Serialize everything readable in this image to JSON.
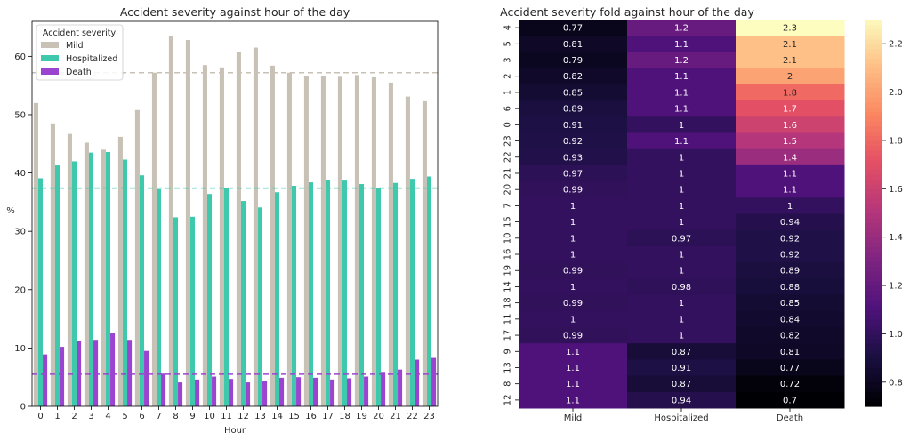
{
  "chart_data": [
    {
      "type": "bar",
      "title": "Accident severity against hour of the day",
      "xlabel": "Hour",
      "ylabel": "%",
      "ylim": [
        0,
        66
      ],
      "yticks": [
        0,
        10,
        20,
        30,
        40,
        50,
        60
      ],
      "legend_title": "Accident severity",
      "legend_position": "upper-left",
      "categories": [
        "0",
        "1",
        "2",
        "3",
        "4",
        "5",
        "6",
        "7",
        "8",
        "9",
        "10",
        "11",
        "12",
        "13",
        "14",
        "15",
        "16",
        "17",
        "18",
        "19",
        "20",
        "21",
        "22",
        "23"
      ],
      "series": [
        {
          "name": "Mild",
          "color": "#c8c2b6",
          "values": [
            52.0,
            48.5,
            46.7,
            45.2,
            44.0,
            46.2,
            50.8,
            57.2,
            63.5,
            62.8,
            58.5,
            58.1,
            60.8,
            61.5,
            58.4,
            57.2,
            56.7,
            56.7,
            56.5,
            56.8,
            56.4,
            55.5,
            53.1,
            52.3
          ]
        },
        {
          "name": "Hospitalized",
          "color": "#3ec9ad",
          "values": [
            39.1,
            41.3,
            42.0,
            43.5,
            43.6,
            42.3,
            39.6,
            37.2,
            32.4,
            32.5,
            36.4,
            37.4,
            35.2,
            34.1,
            36.7,
            37.8,
            38.4,
            38.8,
            38.7,
            38.1,
            37.4,
            38.3,
            39.0,
            39.4
          ]
        },
        {
          "name": "Death",
          "color": "#9b44d0",
          "values": [
            8.9,
            10.2,
            11.2,
            11.4,
            12.5,
            11.4,
            9.5,
            5.6,
            4.1,
            4.6,
            5.1,
            4.7,
            4.1,
            4.4,
            4.9,
            5.0,
            4.9,
            4.6,
            4.8,
            5.1,
            5.9,
            6.3,
            8.0,
            8.3
          ]
        }
      ],
      "reference_lines": [
        {
          "series": "Mild",
          "value": 57.2,
          "style": "dashed"
        },
        {
          "series": "Hospitalized",
          "value": 37.4,
          "style": "dashed"
        },
        {
          "series": "Death",
          "value": 5.5,
          "style": "dashed"
        }
      ]
    },
    {
      "type": "heatmap",
      "title": "Accident severity fold against hour of the day",
      "colormap": "magma",
      "vmin": 0.7,
      "vmax": 2.3,
      "colorbar_ticks": [
        0.8,
        1.0,
        1.2,
        1.4,
        1.6,
        1.8,
        2.0,
        2.2
      ],
      "columns": [
        "Mild",
        "Hospitalized",
        "Death"
      ],
      "rows": [
        "4",
        "5",
        "3",
        "2",
        "1",
        "6",
        "0",
        "23",
        "22",
        "21",
        "20",
        "7",
        "15",
        "10",
        "16",
        "19",
        "14",
        "18",
        "11",
        "17",
        "9",
        "13",
        "8",
        "12"
      ],
      "values": [
        [
          0.77,
          1.2,
          2.3
        ],
        [
          0.81,
          1.1,
          2.1
        ],
        [
          0.79,
          1.2,
          2.1
        ],
        [
          0.82,
          1.1,
          2
        ],
        [
          0.85,
          1.1,
          1.8
        ],
        [
          0.89,
          1.1,
          1.7
        ],
        [
          0.91,
          1,
          1.6
        ],
        [
          0.92,
          1.1,
          1.5
        ],
        [
          0.93,
          1,
          1.4
        ],
        [
          0.97,
          1,
          1.1
        ],
        [
          0.99,
          1,
          1.1
        ],
        [
          1,
          1,
          1
        ],
        [
          1,
          1,
          0.94
        ],
        [
          1,
          0.97,
          0.92
        ],
        [
          1,
          1,
          0.92
        ],
        [
          0.99,
          1,
          0.89
        ],
        [
          1,
          0.98,
          0.88
        ],
        [
          0.99,
          1,
          0.85
        ],
        [
          1,
          1,
          0.84
        ],
        [
          0.99,
          1,
          0.82
        ],
        [
          1.1,
          0.87,
          0.81
        ],
        [
          1.1,
          0.91,
          0.77
        ],
        [
          1.1,
          0.87,
          0.72
        ],
        [
          1.1,
          0.94,
          0.7
        ]
      ]
    }
  ]
}
